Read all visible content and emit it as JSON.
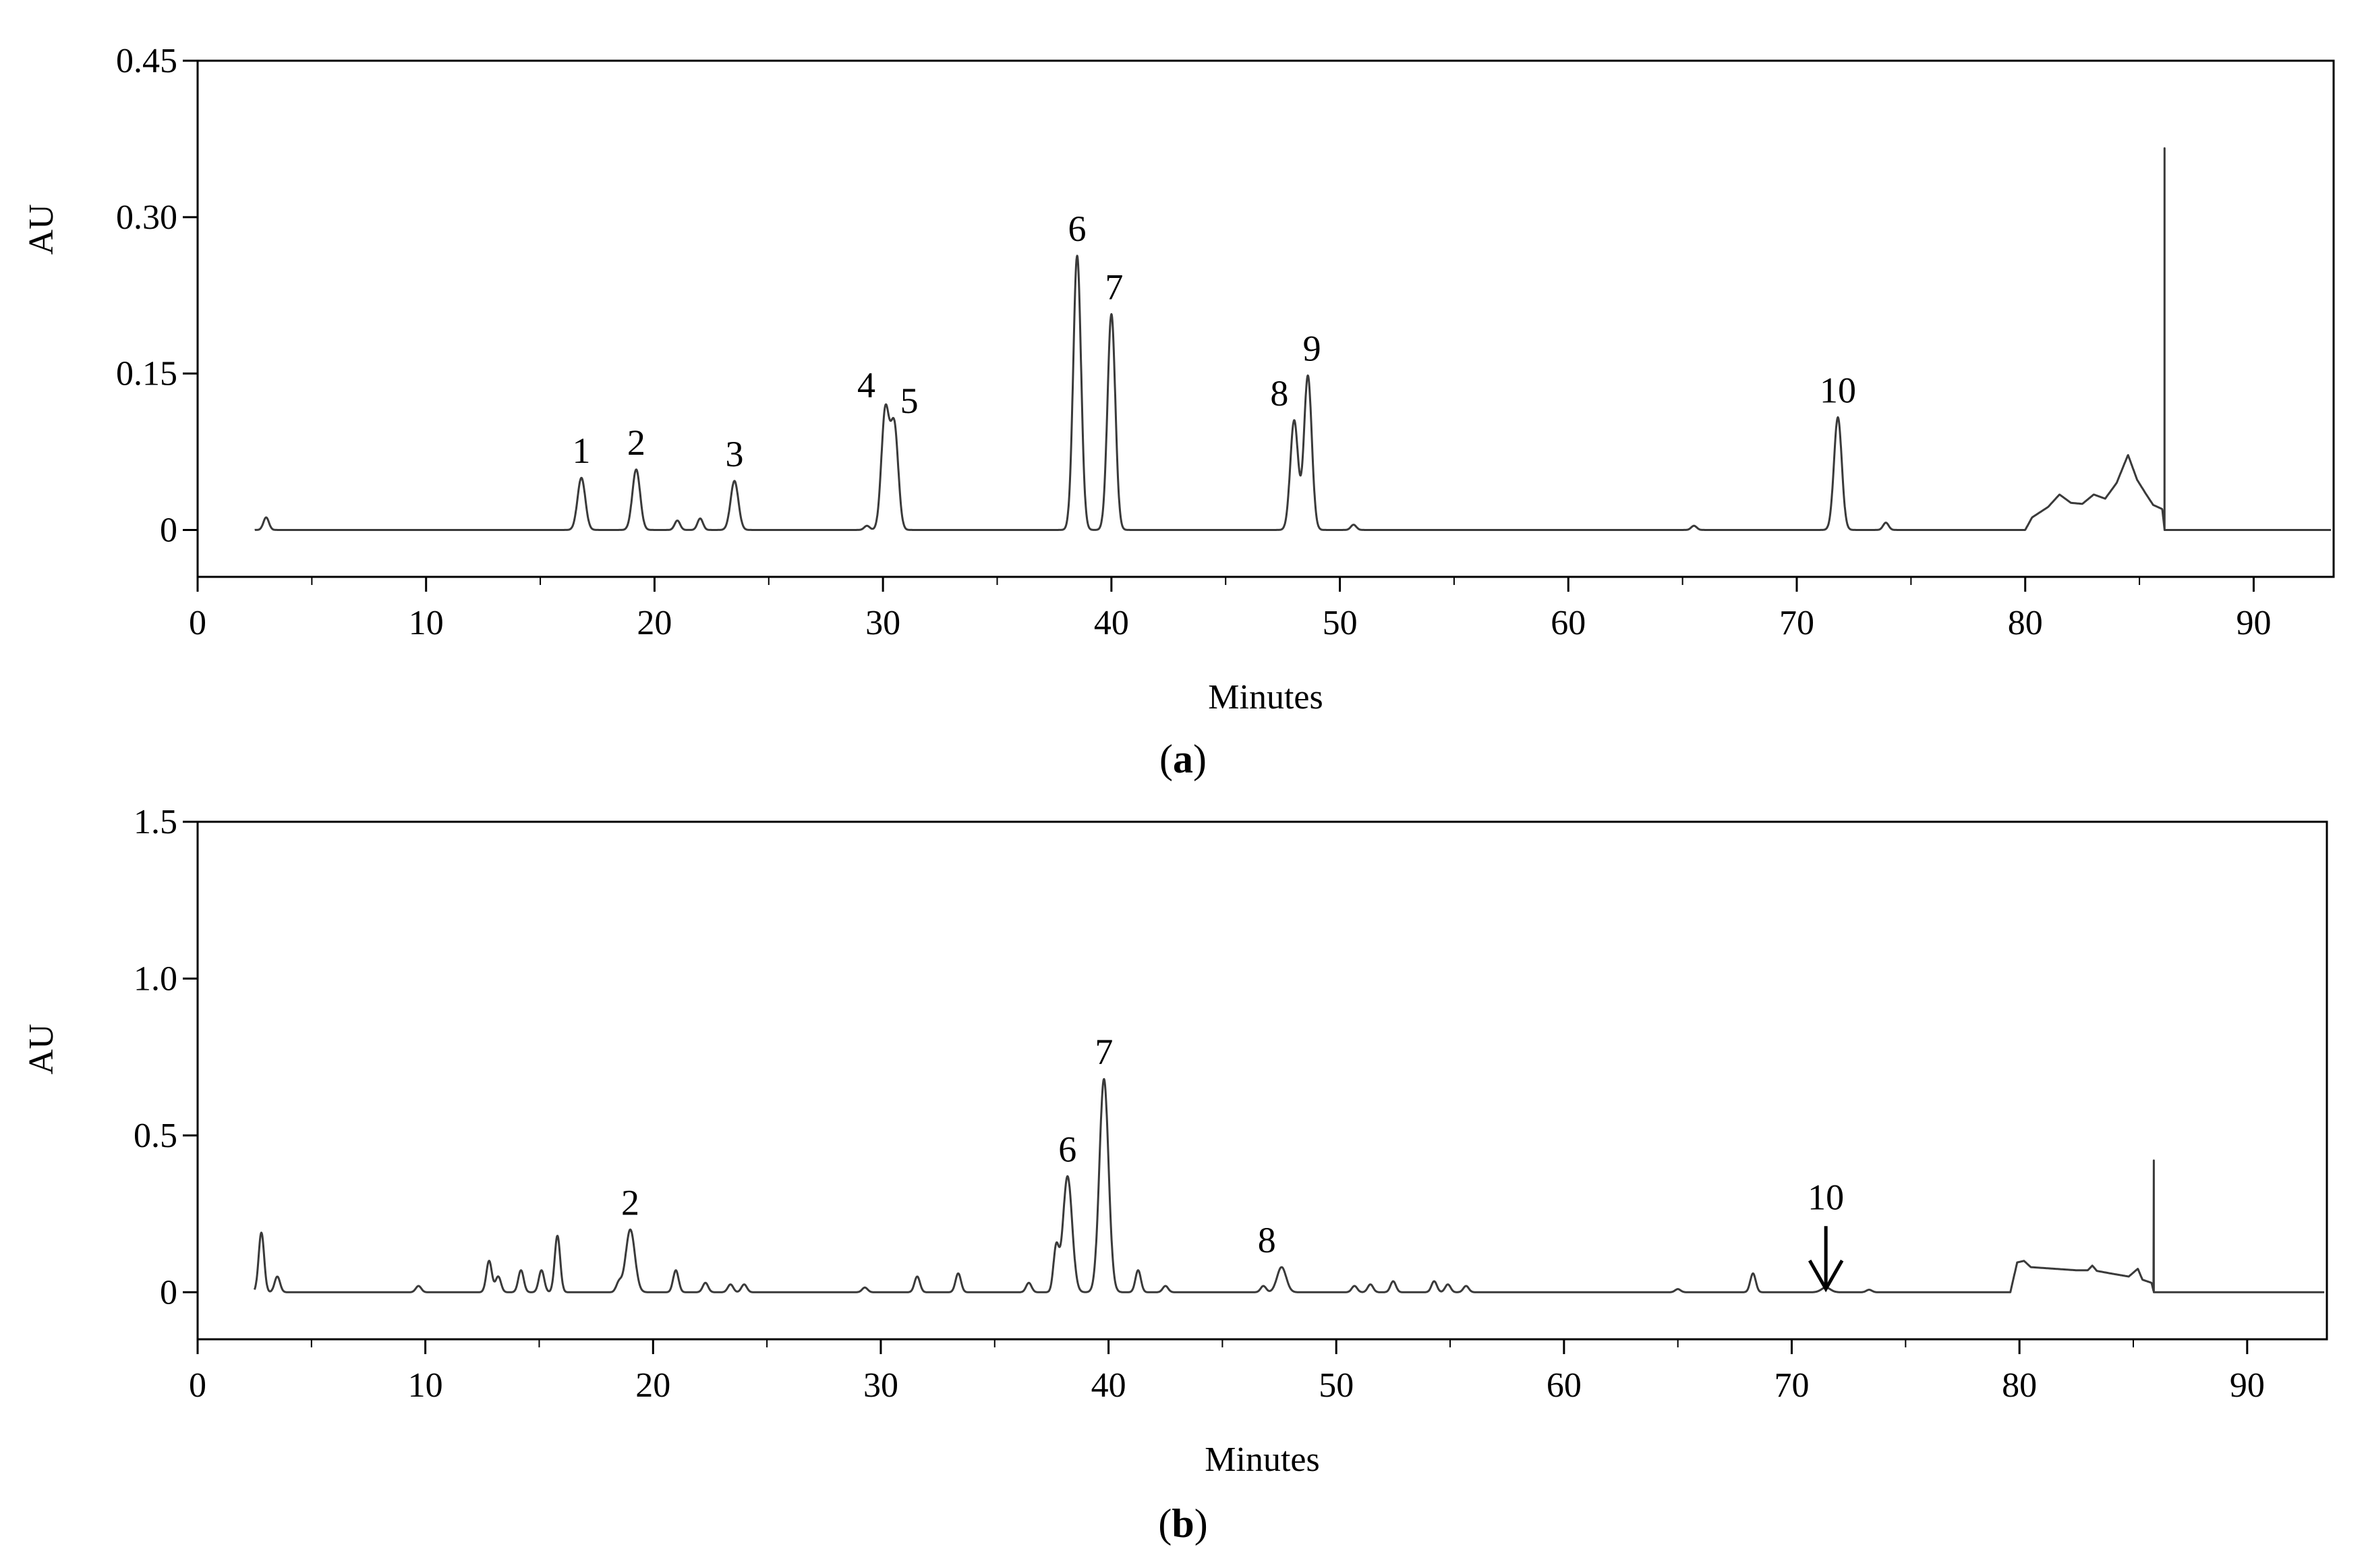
{
  "chart_data": [
    {
      "type": "line",
      "panel_label": "a",
      "xlabel": "Minutes",
      "ylabel": "AU",
      "xlim": [
        0,
        93.5
      ],
      "ylim": [
        -0.045,
        0.45
      ],
      "x_ticks": [
        0,
        10,
        20,
        30,
        40,
        50,
        60,
        70,
        80,
        90
      ],
      "x_tick_labels": [
        "0",
        "10",
        "20",
        "30",
        "40",
        "50",
        "60",
        "70",
        "80",
        "90"
      ],
      "y_ticks": [
        0,
        0.15,
        0.3,
        0.45
      ],
      "y_tick_labels": [
        "0",
        "0.15",
        "0.30",
        "0.45"
      ],
      "grid": false,
      "peaks": [
        {
          "label": "1",
          "time": 16.8,
          "height": 0.05
        },
        {
          "label": "2",
          "time": 19.2,
          "height": 0.058
        },
        {
          "label": "3",
          "time": 23.5,
          "height": 0.047
        },
        {
          "label": "4",
          "time": 30.1,
          "height": 0.113
        },
        {
          "label": "5",
          "time": 30.5,
          "height": 0.098
        },
        {
          "label": "6",
          "time": 38.5,
          "height": 0.263
        },
        {
          "label": "7",
          "time": 40.0,
          "height": 0.207
        },
        {
          "label": "8",
          "time": 48.0,
          "height": 0.105
        },
        {
          "label": "9",
          "time": 48.6,
          "height": 0.148
        },
        {
          "label": "10",
          "time": 71.8,
          "height": 0.108
        }
      ],
      "minor_peaks": [
        {
          "time": 3.0,
          "height": 0.012
        },
        {
          "time": 21.0,
          "height": 0.009
        },
        {
          "time": 22.0,
          "height": 0.011
        },
        {
          "time": 29.3,
          "height": 0.004
        },
        {
          "time": 50.6,
          "height": 0.005
        },
        {
          "time": 65.5,
          "height": 0.004
        },
        {
          "time": 73.9,
          "height": 0.007
        }
      ],
      "gradient_region": {
        "start": 80.0,
        "end": 86.1,
        "profile": [
          [
            80.0,
            0.0
          ],
          [
            80.3,
            0.012
          ],
          [
            81.0,
            0.022
          ],
          [
            81.5,
            0.034
          ],
          [
            82.0,
            0.026
          ],
          [
            82.5,
            0.025
          ],
          [
            83.0,
            0.034
          ],
          [
            83.5,
            0.03
          ],
          [
            84.0,
            0.045
          ],
          [
            84.5,
            0.072
          ],
          [
            84.9,
            0.048
          ],
          [
            85.3,
            0.034
          ],
          [
            85.6,
            0.024
          ],
          [
            86.0,
            0.02
          ],
          [
            86.1,
            0.0
          ]
        ]
      },
      "spikes": [
        {
          "time": 86.1,
          "height": 0.366
        }
      ]
    },
    {
      "type": "line",
      "panel_label": "b",
      "xlabel": "Minutes",
      "ylabel": "AU",
      "xlim": [
        0,
        93.5
      ],
      "ylim": [
        -0.15,
        1.5
      ],
      "x_ticks": [
        0,
        10,
        20,
        30,
        40,
        50,
        60,
        70,
        80,
        90
      ],
      "x_tick_labels": [
        "0",
        "10",
        "20",
        "30",
        "40",
        "50",
        "60",
        "70",
        "80",
        "90"
      ],
      "y_ticks": [
        0,
        0.5,
        1.0,
        1.5
      ],
      "y_tick_labels": [
        "0",
        "0.5",
        "1.0",
        "1.5"
      ],
      "grid": false,
      "peaks": [
        {
          "label": "2",
          "time": 19.0,
          "height": 0.2
        },
        {
          "label": "6",
          "time": 38.2,
          "height": 0.37
        },
        {
          "label": "7",
          "time": 39.8,
          "height": 0.68
        },
        {
          "label": "8",
          "time": 47.6,
          "height": 0.08
        },
        {
          "label": "10",
          "time": 71.5,
          "height": 0.015
        }
      ],
      "minor_peaks": [
        {
          "time": 2.8,
          "height": 0.19
        },
        {
          "time": 3.5,
          "height": 0.05
        },
        {
          "time": 9.7,
          "height": 0.02
        },
        {
          "time": 12.8,
          "height": 0.1
        },
        {
          "time": 13.2,
          "height": 0.05
        },
        {
          "time": 14.2,
          "height": 0.07
        },
        {
          "time": 15.1,
          "height": 0.07
        },
        {
          "time": 15.8,
          "height": 0.18
        },
        {
          "time": 18.5,
          "height": 0.03
        },
        {
          "time": 21.0,
          "height": 0.07
        },
        {
          "time": 22.3,
          "height": 0.03
        },
        {
          "time": 23.4,
          "height": 0.025
        },
        {
          "time": 24.0,
          "height": 0.025
        },
        {
          "time": 29.3,
          "height": 0.015
        },
        {
          "time": 31.6,
          "height": 0.05
        },
        {
          "time": 33.4,
          "height": 0.06
        },
        {
          "time": 36.5,
          "height": 0.03
        },
        {
          "time": 37.7,
          "height": 0.14
        },
        {
          "time": 41.3,
          "height": 0.07
        },
        {
          "time": 42.5,
          "height": 0.02
        },
        {
          "time": 46.8,
          "height": 0.02
        },
        {
          "time": 50.8,
          "height": 0.02
        },
        {
          "time": 51.5,
          "height": 0.025
        },
        {
          "time": 52.5,
          "height": 0.035
        },
        {
          "time": 54.3,
          "height": 0.035
        },
        {
          "time": 54.9,
          "height": 0.025
        },
        {
          "time": 55.7,
          "height": 0.02
        },
        {
          "time": 65.0,
          "height": 0.01
        },
        {
          "time": 68.3,
          "height": 0.06
        },
        {
          "time": 73.4,
          "height": 0.008
        }
      ],
      "gradient_region": {
        "start": 79.6,
        "end": 85.9,
        "profile": [
          [
            79.6,
            0.0
          ],
          [
            79.9,
            0.095
          ],
          [
            80.2,
            0.1
          ],
          [
            80.5,
            0.08
          ],
          [
            81.5,
            0.075
          ],
          [
            82.5,
            0.07
          ],
          [
            83.0,
            0.07
          ],
          [
            83.2,
            0.085
          ],
          [
            83.4,
            0.068
          ],
          [
            84.0,
            0.06
          ],
          [
            84.8,
            0.05
          ],
          [
            85.2,
            0.075
          ],
          [
            85.4,
            0.04
          ],
          [
            85.8,
            0.03
          ],
          [
            85.9,
            0.0
          ]
        ]
      },
      "spikes": [
        {
          "time": 85.9,
          "height": 0.42
        }
      ]
    }
  ],
  "annotations": {
    "arrow_panel_b_target_label": "10"
  }
}
